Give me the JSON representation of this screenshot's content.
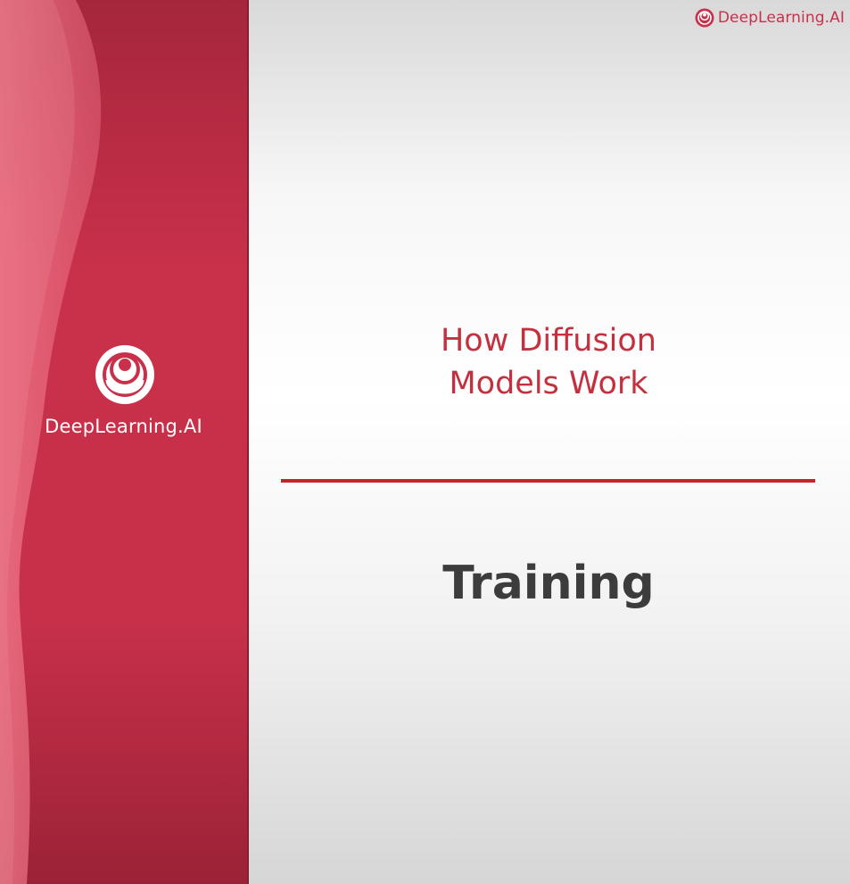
{
  "brand": {
    "name": "DeepLearning.AI",
    "logo_icon": "deeplearning-ai-logo-icon",
    "primary_color": "#c9304a"
  },
  "slide": {
    "course_title_line1": "How Diffusion",
    "course_title_line2": "Models Work",
    "section_title": "Training",
    "title_color": "#c5303f",
    "divider_color": "#c5242f",
    "section_color": "#3c3c3c"
  }
}
